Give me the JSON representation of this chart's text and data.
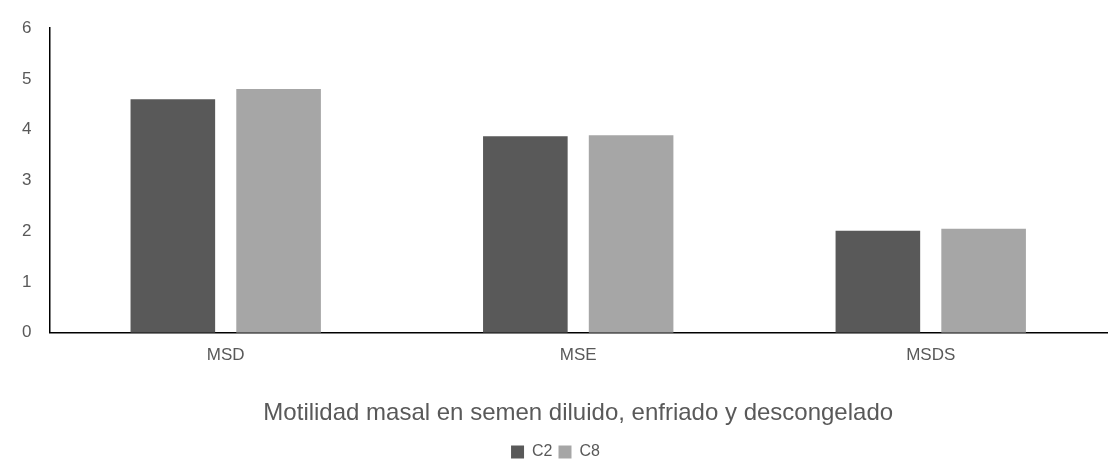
{
  "chart_data": {
    "type": "bar",
    "xlabel": "Motilidad masal en semen diluido, enfriado y descongelado",
    "categories": [
      "MSD",
      "MSE",
      "MSDS"
    ],
    "series": [
      {
        "name": "C2",
        "color": "#595959",
        "values": [
          4.6,
          3.87,
          2.01
        ]
      },
      {
        "name": "C8",
        "color": "#a6a6a6",
        "values": [
          4.8,
          3.89,
          2.05
        ]
      }
    ],
    "ylim": [
      0,
      6
    ],
    "yticks": [
      0,
      1,
      2,
      3,
      4,
      5,
      6
    ],
    "grid": false,
    "legend": "bottom"
  }
}
